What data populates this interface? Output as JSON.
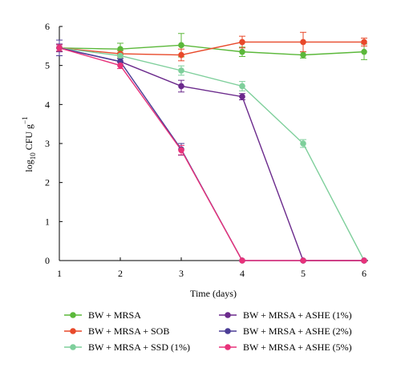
{
  "chart_data": {
    "type": "line",
    "xlabel": "Time (days)",
    "ylabel": {
      "prefix": "log",
      "subscript": "10",
      "main": " CFU g",
      "superscript": "−1"
    },
    "x": [
      1,
      2,
      3,
      4,
      5,
      6
    ],
    "xlim": [
      1,
      6
    ],
    "ylim": [
      0,
      6
    ],
    "xticks": [
      "1",
      "2",
      "3",
      "4",
      "5",
      "6"
    ],
    "yticks": [
      "0",
      "1",
      "2",
      "3",
      "4",
      "5",
      "6"
    ],
    "grid": false,
    "legend_position": "bottom",
    "series": [
      {
        "name": "BW + MRSA",
        "color": "#5bb83a",
        "values": [
          5.45,
          5.42,
          5.52,
          5.35,
          5.27,
          5.35
        ],
        "errors": [
          0.08,
          0.15,
          0.3,
          0.12,
          0.08,
          0.2
        ]
      },
      {
        "name": "BW + MRSA + SOB",
        "color": "#e8492a",
        "values": [
          5.45,
          5.3,
          5.27,
          5.6,
          5.6,
          5.6
        ],
        "errors": [
          0.08,
          0.08,
          0.15,
          0.15,
          0.25,
          0.1
        ]
      },
      {
        "name": "BW + MRSA + SSD (1%)",
        "color": "#7ecf9b",
        "values": [
          5.45,
          5.25,
          4.87,
          4.47,
          3.0,
          0.0
        ],
        "errors": [
          0.08,
          0.08,
          0.12,
          0.12,
          0.1,
          0.0
        ]
      },
      {
        "name": "BW + MRSA + ASHE (1%)",
        "color": "#6b2a8c",
        "values": [
          5.45,
          5.1,
          4.47,
          4.2,
          0.0,
          0.0
        ],
        "errors": [
          0.1,
          0.08,
          0.15,
          0.08,
          0.0,
          0.0
        ]
      },
      {
        "name": "BW + MRSA + ASHE (2%)",
        "color": "#4b3d96",
        "values": [
          5.45,
          5.1,
          2.85,
          0.0,
          0.0,
          0.0
        ],
        "errors": [
          0.2,
          0.08,
          0.15,
          0.0,
          0.0,
          0.0
        ]
      },
      {
        "name": "BW + MRSA + ASHE (5%)",
        "color": "#e8327a",
        "values": [
          5.45,
          5.0,
          2.83,
          0.0,
          0.0,
          0.0
        ],
        "errors": [
          0.08,
          0.08,
          0.12,
          0.0,
          0.0,
          0.0
        ]
      }
    ]
  }
}
